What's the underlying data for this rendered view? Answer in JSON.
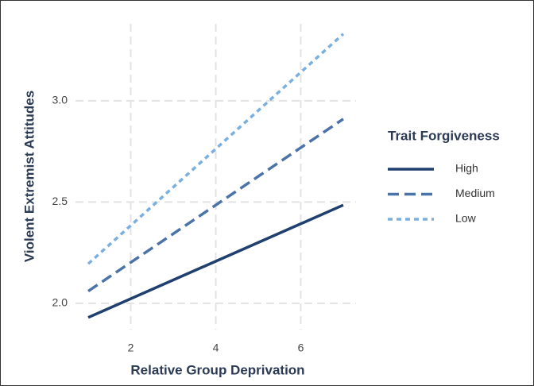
{
  "chart_data": {
    "type": "line",
    "x_label": "Relative Group Deprivation",
    "y_label": "Violent Extremist Attitudes",
    "x": [
      1,
      7
    ],
    "series": [
      {
        "name": "High",
        "color": "#1f3f6e",
        "dash": "solid",
        "values": [
          1.93,
          2.485
        ]
      },
      {
        "name": "Medium",
        "color": "#4a73a8",
        "dash": "dashed",
        "values": [
          2.06,
          2.91
        ]
      },
      {
        "name": "Low",
        "color": "#7ab0e0",
        "dash": "dotted",
        "values": [
          2.195,
          3.33
        ]
      }
    ],
    "legend_title": "Trait Forgiveness",
    "legend_position": "right",
    "xlim": [
      0.7,
      7.3
    ],
    "xticks": [
      2,
      4,
      6
    ],
    "ylim": [
      1.87,
      3.38
    ],
    "yticks": [
      {
        "value": 2,
        "label": "2.0"
      },
      {
        "value": 2.5,
        "label": "2.5"
      },
      {
        "value": 3,
        "label": "3.0"
      }
    ],
    "grid": true
  }
}
